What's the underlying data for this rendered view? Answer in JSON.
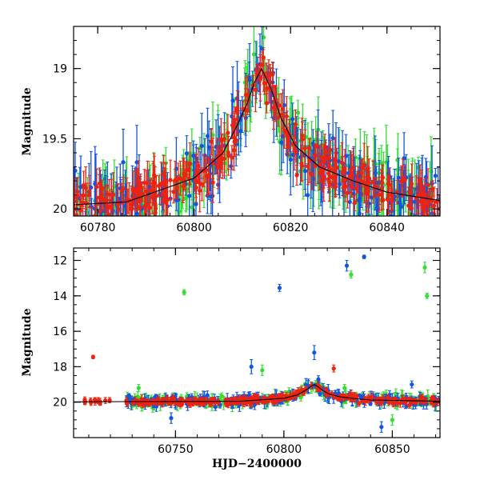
{
  "colors": {
    "blue": "#1155e0",
    "green": "#33dd33",
    "red": "#ee2211",
    "model": "#000000"
  },
  "chart_data": [
    {
      "id": "zoom",
      "type": "scatter",
      "title": "",
      "xlabel": "",
      "ylabel": "Magnitude",
      "xlim": [
        60775,
        60851
      ],
      "ylim": [
        20.05,
        18.7
      ],
      "y_inverted": true,
      "grid": false,
      "legend": "none",
      "xticks": [
        "60780",
        "60800",
        "60820",
        "60840"
      ],
      "xtick_values": [
        60780,
        60800,
        60820,
        60840
      ],
      "yticks": [
        "19",
        "19.5",
        "20"
      ],
      "ytick_values": [
        19,
        19.5,
        20
      ],
      "model_curve": {
        "x": [
          60775,
          60786,
          60800,
          60806,
          60809,
          60811,
          60812.5,
          60814,
          60816,
          60818,
          60821,
          60826,
          60833,
          60840,
          60851
        ],
        "y": [
          19.97,
          19.95,
          19.78,
          19.6,
          19.4,
          19.25,
          19.1,
          19.0,
          19.15,
          19.35,
          19.55,
          19.7,
          19.8,
          19.88,
          19.94
        ]
      },
      "series": [
        {
          "color": "blue",
          "description": "observations (blue filter)"
        },
        {
          "color": "green",
          "description": "observations (green filter)"
        },
        {
          "color": "red",
          "description": "observations (red filter)"
        }
      ]
    },
    {
      "id": "full",
      "type": "scatter",
      "title": "",
      "xlabel": "HJD−2400000",
      "ylabel": "Magnitude",
      "xlim": [
        60703,
        60872
      ],
      "ylim": [
        22,
        11.3
      ],
      "y_inverted": true,
      "grid": false,
      "legend": "none",
      "xticks": [
        "60750",
        "60800",
        "60850"
      ],
      "xtick_values": [
        60750,
        60800,
        60850
      ],
      "yticks": [
        "12",
        "14",
        "16",
        "18",
        "20"
      ],
      "ytick_values": [
        12,
        14,
        16,
        18,
        20
      ],
      "model_curve": {
        "x": [
          60703,
          60727,
          60760,
          60780,
          60800,
          60806,
          60809,
          60811,
          60812.5,
          60814,
          60816,
          60818,
          60821,
          60826,
          60833,
          60840,
          60872
        ],
        "y": [
          19.98,
          19.97,
          19.96,
          19.95,
          19.78,
          19.6,
          19.4,
          19.25,
          19.1,
          19.0,
          19.15,
          19.35,
          19.55,
          19.7,
          19.8,
          19.88,
          19.95
        ]
      },
      "outliers": [
        {
          "x": 60712,
          "y": 17.45,
          "err": 0.1,
          "series": "red"
        },
        {
          "x": 60754,
          "y": 13.8,
          "err": 0.15,
          "series": "green"
        },
        {
          "x": 60785,
          "y": 18.0,
          "err": 0.4,
          "series": "blue"
        },
        {
          "x": 60790,
          "y": 18.2,
          "err": 0.3,
          "series": "green"
        },
        {
          "x": 60798,
          "y": 13.55,
          "err": 0.2,
          "series": "blue"
        },
        {
          "x": 60814,
          "y": 17.2,
          "err": 0.4,
          "series": "blue"
        },
        {
          "x": 60823,
          "y": 18.1,
          "err": 0.2,
          "series": "red"
        },
        {
          "x": 60829,
          "y": 12.3,
          "err": 0.3,
          "series": "blue"
        },
        {
          "x": 60831,
          "y": 12.8,
          "err": 0.2,
          "series": "green"
        },
        {
          "x": 60837,
          "y": 11.8,
          "err": 0.1,
          "series": "blue"
        },
        {
          "x": 60865,
          "y": 12.4,
          "err": 0.3,
          "series": "green"
        },
        {
          "x": 60866,
          "y": 14.0,
          "err": 0.15,
          "series": "green"
        },
        {
          "x": 60733,
          "y": 19.2,
          "err": 0.2,
          "series": "green"
        },
        {
          "x": 60748,
          "y": 20.9,
          "err": 0.3,
          "series": "blue"
        },
        {
          "x": 60828,
          "y": 19.2,
          "err": 0.2,
          "series": "green"
        },
        {
          "x": 60845,
          "y": 21.4,
          "err": 0.3,
          "series": "blue"
        },
        {
          "x": 60850,
          "y": 21.0,
          "err": 0.3,
          "series": "green"
        },
        {
          "x": 60859,
          "y": 19.0,
          "err": 0.2,
          "series": "blue"
        }
      ],
      "series": [
        {
          "color": "blue",
          "description": "observations (blue filter)"
        },
        {
          "color": "green",
          "description": "observations (green filter)"
        },
        {
          "color": "red",
          "description": "observations (red filter)"
        }
      ]
    }
  ]
}
